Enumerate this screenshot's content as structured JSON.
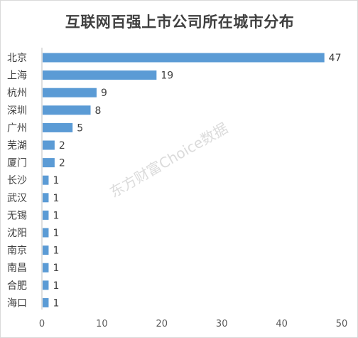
{
  "chart_data": {
    "type": "bar",
    "orientation": "horizontal",
    "title": "互联网百强上市公司所在城市分布",
    "categories": [
      "北京",
      "上海",
      "杭州",
      "深圳",
      "广州",
      "芜湖",
      "厦门",
      "长沙",
      "武汉",
      "无锡",
      "沈阳",
      "南京",
      "南昌",
      "合肥",
      "海口"
    ],
    "values": [
      47,
      19,
      9,
      8,
      5,
      2,
      2,
      1,
      1,
      1,
      1,
      1,
      1,
      1,
      1
    ],
    "xlabel": "",
    "ylabel": "",
    "xlim": [
      0,
      50
    ],
    "x_ticks": [
      0,
      10,
      20,
      30,
      40,
      50
    ],
    "grid": false,
    "data_labels": true,
    "bar_color": "#5b9bd5",
    "watermark": "东方财富Choice数据"
  }
}
